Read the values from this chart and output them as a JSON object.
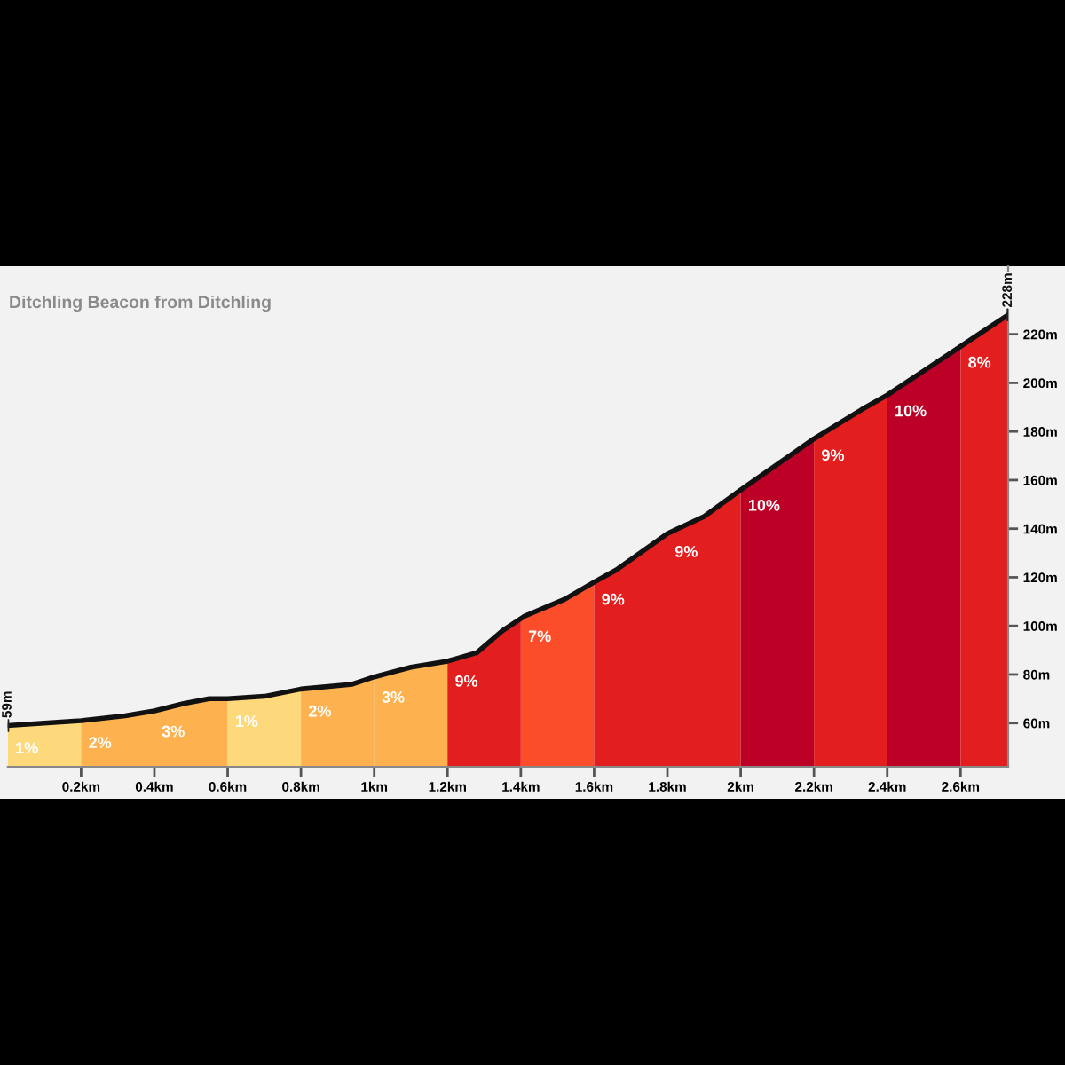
{
  "chart_data": {
    "type": "line",
    "title": "Ditchling Beacon from Ditchling",
    "x": [
      0,
      0.2,
      0.32,
      0.4,
      0.48,
      0.55,
      0.6,
      0.7,
      0.8,
      0.94,
      1.0,
      1.1,
      1.2,
      1.28,
      1.35,
      1.41,
      1.52,
      1.6,
      1.66,
      1.8,
      1.9,
      2.0,
      2.2,
      2.33,
      2.4,
      2.49,
      2.6,
      2.66,
      2.73
    ],
    "series": [
      {
        "color": "#111111",
        "values": [
          59,
          61,
          63,
          65,
          68,
          70,
          70,
          71,
          74,
          76,
          79,
          83,
          85.5,
          89,
          98,
          104,
          111,
          118,
          123,
          138,
          145,
          156,
          177,
          189,
          195,
          204,
          215,
          221,
          228
        ]
      }
    ],
    "bands": [
      {
        "axis": "x",
        "from": 0,
        "to": 0.2,
        "label": "1%",
        "color": "#fed97b"
      },
      {
        "axis": "x",
        "from": 0.2,
        "to": 0.4,
        "label": "2%",
        "color": "#fdb24f"
      },
      {
        "axis": "x",
        "from": 0.4,
        "to": 0.6,
        "label": "3%",
        "color": "#fdb24f"
      },
      {
        "axis": "x",
        "from": 0.6,
        "to": 0.8,
        "label": "1%",
        "color": "#fed97b"
      },
      {
        "axis": "x",
        "from": 0.8,
        "to": 1.0,
        "label": "2%",
        "color": "#fdb24f"
      },
      {
        "axis": "x",
        "from": 1.0,
        "to": 1.2,
        "label": "3%",
        "color": "#fdb24f"
      },
      {
        "axis": "x",
        "from": 1.2,
        "to": 1.4,
        "label": "9%",
        "color": "#e21e1f"
      },
      {
        "axis": "x",
        "from": 1.4,
        "to": 1.6,
        "label": "7%",
        "color": "#fc4d2a"
      },
      {
        "axis": "x",
        "from": 1.6,
        "to": 1.8,
        "label": "9%",
        "color": "#e21e1f"
      },
      {
        "axis": "x",
        "from": 1.8,
        "to": 2.0,
        "label": "9%",
        "color": "#e21e1f"
      },
      {
        "axis": "x",
        "from": 2.0,
        "to": 2.2,
        "label": "10%",
        "color": "#bd0026"
      },
      {
        "axis": "x",
        "from": 2.2,
        "to": 2.4,
        "label": "9%",
        "color": "#e21e1f"
      },
      {
        "axis": "x",
        "from": 2.4,
        "to": 2.6,
        "label": "10%",
        "color": "#bd0026"
      },
      {
        "axis": "x",
        "from": 2.6,
        "to": 2.73,
        "label": "8%",
        "color": "#e21e1f"
      }
    ],
    "annotations": [
      {
        "text": "59m",
        "x": 0,
        "y": 59
      },
      {
        "text": "228m",
        "x": 2.73,
        "y": 228
      }
    ],
    "xlim": [
      0,
      2.73
    ],
    "ylim": [
      42,
      248
    ],
    "xticks": [
      {
        "value": 0.2,
        "label": "0.2km"
      },
      {
        "value": 0.4,
        "label": "0.4km"
      },
      {
        "value": 0.6,
        "label": "0.6km"
      },
      {
        "value": 0.8,
        "label": "0.8km"
      },
      {
        "value": 1,
        "label": "1km"
      },
      {
        "value": 1.2,
        "label": "1.2km"
      },
      {
        "value": 1.4,
        "label": "1.4km"
      },
      {
        "value": 1.6,
        "label": "1.6km"
      },
      {
        "value": 1.8,
        "label": "1.8km"
      },
      {
        "value": 2,
        "label": "2km"
      },
      {
        "value": 2.2,
        "label": "2.2km"
      },
      {
        "value": 2.4,
        "label": "2.4km"
      },
      {
        "value": 2.6,
        "label": "2.6km"
      }
    ],
    "yticks": [
      {
        "value": 60,
        "label": "60m"
      },
      {
        "value": 80,
        "label": "80m"
      },
      {
        "value": 100,
        "label": "100m"
      },
      {
        "value": 120,
        "label": "120m"
      },
      {
        "value": 140,
        "label": "140m"
      },
      {
        "value": 160,
        "label": "160m"
      },
      {
        "value": 180,
        "label": "180m"
      },
      {
        "value": 200,
        "label": "200m"
      },
      {
        "value": 220,
        "label": "220m"
      }
    ],
    "grid": false,
    "legend": false
  }
}
